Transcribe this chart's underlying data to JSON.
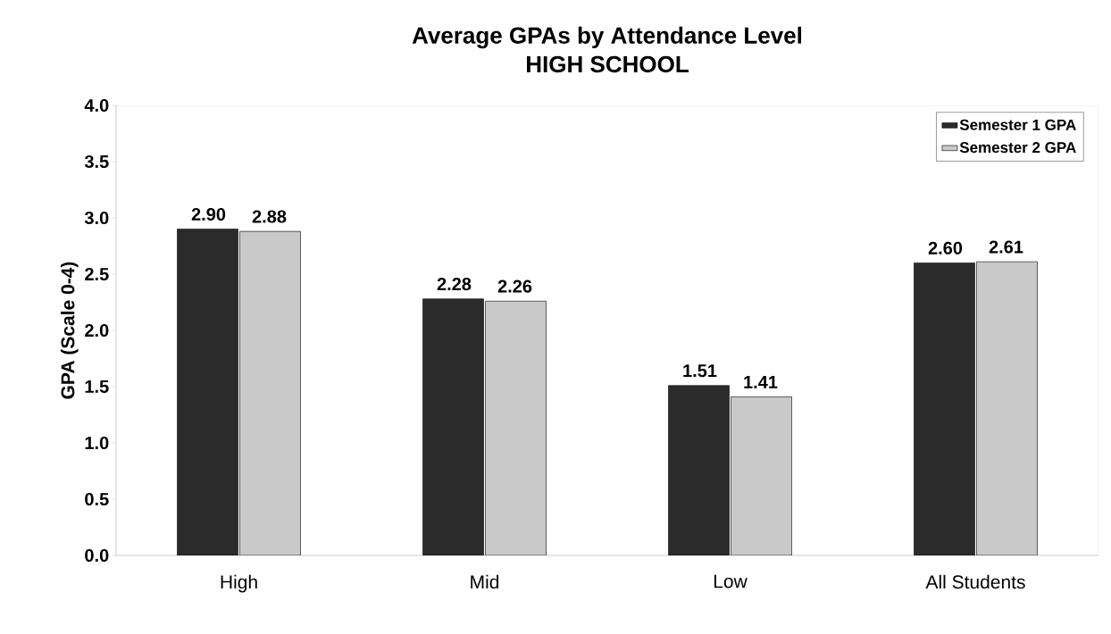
{
  "chart_data": {
    "type": "bar",
    "title": "Average GPAs by Attendance Level",
    "subtitle": "HIGH SCHOOL",
    "ylabel": "GPA (Scale 0-4)",
    "categories": [
      "High",
      "Mid",
      "Low",
      "All Students"
    ],
    "series": [
      {
        "name": "Semester 1 GPA",
        "color": "#2b2b2b",
        "values": [
          2.9,
          2.28,
          1.51,
          2.6
        ],
        "value_labels": [
          "2.90",
          "2.28",
          "1.51",
          "2.60"
        ]
      },
      {
        "name": "Semester 2 GPA",
        "color": "#c9c9c9",
        "values": [
          2.88,
          2.26,
          1.41,
          2.61
        ],
        "value_labels": [
          "2.88",
          "2.26",
          "1.41",
          "2.61"
        ]
      }
    ],
    "ylim": [
      0,
      4
    ],
    "yticks": [
      {
        "value": 0,
        "label": "0.0"
      },
      {
        "value": 0.5,
        "label": "0.5"
      },
      {
        "value": 1,
        "label": "1.0"
      },
      {
        "value": 1.5,
        "label": "1.5"
      },
      {
        "value": 2,
        "label": "2.0"
      },
      {
        "value": 2.5,
        "label": "2.5"
      },
      {
        "value": 3,
        "label": "3.0"
      },
      {
        "value": 3.5,
        "label": "3.5"
      },
      {
        "value": 4,
        "label": "4.0"
      }
    ],
    "grid": false,
    "legend": "top right"
  }
}
